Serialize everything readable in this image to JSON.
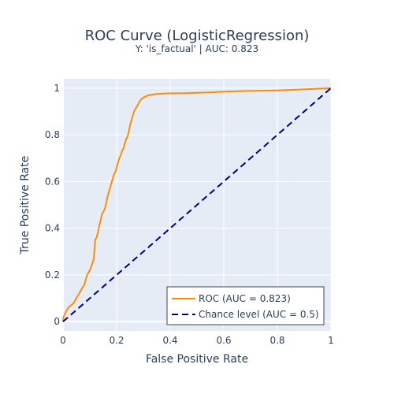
{
  "chart_data": {
    "type": "line",
    "title": "ROC Curve (LogisticRegression)",
    "subtitle": "Y: 'is_factual' | AUC: 0.823",
    "xlabel": "False Positive Rate",
    "ylabel": "True Positive Rate",
    "xlim": [
      0,
      1
    ],
    "ylim": [
      -0.04,
      1.04
    ],
    "x_ticks": [
      0,
      0.2,
      0.4,
      0.6,
      0.8,
      1
    ],
    "x_tick_labels": [
      "0",
      "0.2",
      "0.4",
      "0.6",
      "0.8",
      "1"
    ],
    "y_ticks": [
      0,
      0.2,
      0.4,
      0.6,
      0.8,
      1
    ],
    "y_tick_labels": [
      "0",
      "0.2",
      "0.4",
      "0.6",
      "0.8",
      "1"
    ],
    "grid": true,
    "legend_position": "bottom-right",
    "series": [
      {
        "name": "ROC (AUC = 0.823)",
        "color": "#ff8c00",
        "dash": "solid",
        "x": [
          0,
          0.002,
          0.006,
          0.01,
          0.015,
          0.02,
          0.03,
          0.04,
          0.05,
          0.055,
          0.06,
          0.07,
          0.08,
          0.09,
          0.1,
          0.11,
          0.115,
          0.12,
          0.125,
          0.13,
          0.135,
          0.14,
          0.145,
          0.15,
          0.155,
          0.16,
          0.165,
          0.17,
          0.175,
          0.18,
          0.185,
          0.19,
          0.195,
          0.2,
          0.205,
          0.21,
          0.215,
          0.22,
          0.225,
          0.23,
          0.235,
          0.24,
          0.245,
          0.25,
          0.255,
          0.26,
          0.265,
          0.27,
          0.28,
          0.29,
          0.3,
          0.32,
          0.35,
          0.4,
          0.45,
          0.5,
          0.55,
          0.6,
          0.65,
          0.7,
          0.8,
          0.9,
          1
        ],
        "y": [
          0,
          0.02,
          0.03,
          0.04,
          0.05,
          0.06,
          0.07,
          0.08,
          0.1,
          0.11,
          0.12,
          0.14,
          0.16,
          0.2,
          0.22,
          0.25,
          0.27,
          0.35,
          0.36,
          0.38,
          0.41,
          0.43,
          0.46,
          0.47,
          0.48,
          0.5,
          0.53,
          0.55,
          0.57,
          0.59,
          0.61,
          0.63,
          0.64,
          0.66,
          0.68,
          0.7,
          0.71,
          0.73,
          0.74,
          0.76,
          0.78,
          0.79,
          0.81,
          0.84,
          0.86,
          0.88,
          0.9,
          0.91,
          0.93,
          0.95,
          0.96,
          0.97,
          0.975,
          0.978,
          0.978,
          0.98,
          0.982,
          0.985,
          0.987,
          0.988,
          0.99,
          0.995,
          1
        ]
      },
      {
        "name": "Chance level (AUC = 0.5)",
        "color": "#000080",
        "dash": "dash",
        "x": [
          0,
          1
        ],
        "y": [
          0,
          1
        ]
      }
    ]
  }
}
